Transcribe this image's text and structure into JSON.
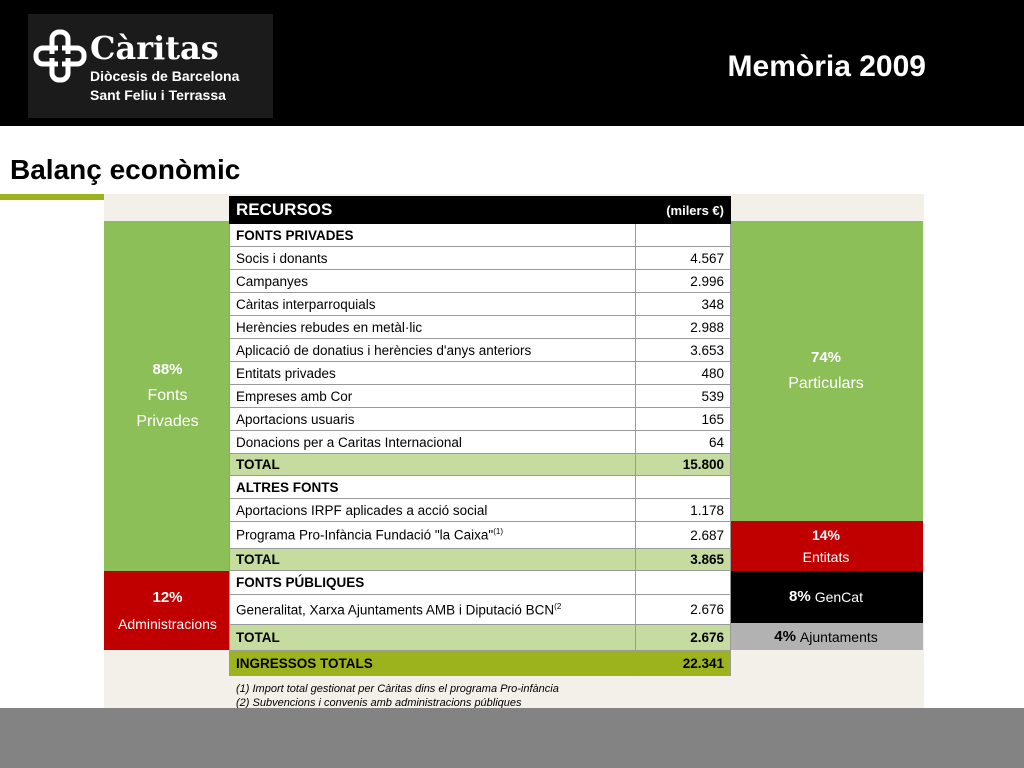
{
  "header": {
    "logo": {
      "name": "Càritas",
      "line1": "Diòcesis de Barcelona",
      "line2": "Sant Feliu i Terrassa"
    },
    "memoria": "Memòria 2009"
  },
  "page_title": "Balanç econòmic",
  "table": {
    "title": "RECURSOS",
    "unit": "(milers €)",
    "sections": [
      {
        "heading": "FONTS PRIVADES",
        "rows": [
          {
            "label": "Socis i donants",
            "value": "4.567"
          },
          {
            "label": "Campanyes",
            "value": "2.996"
          },
          {
            "label": "Càritas interparroquials",
            "value": "348"
          },
          {
            "label": "Herències rebudes en metàl·lic",
            "value": "2.988"
          },
          {
            "label": "Aplicació de donatius i herències d'anys anteriors",
            "value": "3.653"
          },
          {
            "label": "Entitats privades",
            "value": "480"
          },
          {
            "label": "Empreses amb Cor",
            "value": "539"
          },
          {
            "label": "Aportacions usuaris",
            "value": "165"
          },
          {
            "label": "Donacions per a Caritas Internacional",
            "value": "64"
          }
        ],
        "total": {
          "label": "TOTAL",
          "value": "15.800"
        }
      },
      {
        "heading": "ALTRES FONTS",
        "rows": [
          {
            "label": "Aportacions IRPF aplicades a acció social",
            "value": "1.178"
          },
          {
            "label": "Programa Pro-Infància Fundació \"la Caixa\"",
            "sup": "(1)",
            "value": "2.687"
          }
        ],
        "total": {
          "label": "TOTAL",
          "value": "3.865"
        }
      },
      {
        "heading": "FONTS PÚBLIQUES",
        "rows": [
          {
            "label": "Generalitat, Xarxa Ajuntaments AMB i Diputació BCN",
            "sup": "(2",
            "value": "2.676"
          }
        ],
        "total": {
          "label": "TOTAL",
          "value": "2.676"
        }
      }
    ],
    "grand_total": {
      "label": "INGRESSOS TOTALS",
      "value": "22.341"
    }
  },
  "left_panels": [
    {
      "pct": "88%",
      "label1": "Fonts",
      "label2": "Privades",
      "color": "#8dbf58"
    },
    {
      "pct": "12%",
      "label": "Administracions",
      "color": "#c00000"
    }
  ],
  "right_panels": [
    {
      "pct": "74%",
      "label": "Particulars",
      "color": "#8dbf58"
    },
    {
      "pct": "14%",
      "label": "Entitats",
      "color": "#c00000"
    },
    {
      "pct": "8%",
      "label": "GenCat",
      "color": "#000000"
    },
    {
      "pct": "4%",
      "label": "Ajuntaments",
      "color": "#b2b2b2"
    }
  ],
  "notes": [
    "(1) Import total gestionat per Càritas dins el programa Pro-infància",
    "(2) Subvencions i convenis amb administracions públiques"
  ],
  "colors": {
    "accent": "#9cb31e",
    "total_row": "#c5dba0",
    "header": "#000000",
    "footer": "#838383"
  }
}
